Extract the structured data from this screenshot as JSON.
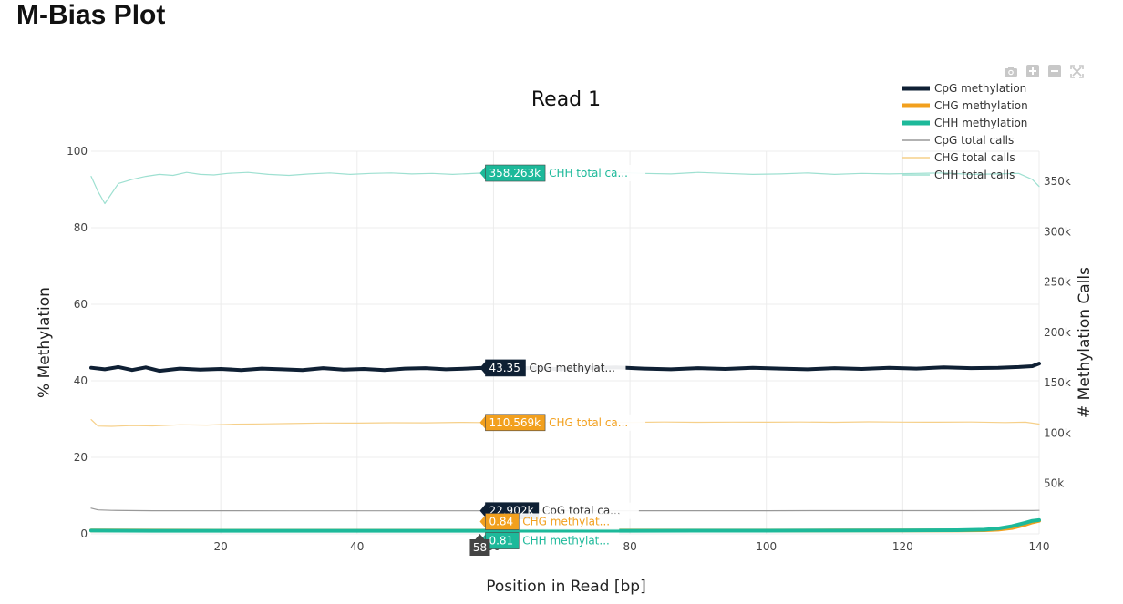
{
  "page": {
    "heading": "M-Bias Plot"
  },
  "modebar": {
    "icons": [
      "camera-icon",
      "zoom-in-icon",
      "zoom-out-icon",
      "autoscale-icon"
    ]
  },
  "chart_data": {
    "type": "line",
    "title": "Read 1",
    "xlabel": "Position in Read [bp]",
    "ylabel": "% Methylation",
    "y2label": "# Methylation Calls",
    "xlim": [
      1,
      140
    ],
    "ylim": [
      0,
      100
    ],
    "y2lim": [
      0,
      380000
    ],
    "xticks": [
      20,
      40,
      60,
      80,
      100,
      120,
      140
    ],
    "yticks": [
      0,
      20,
      40,
      60,
      80,
      100
    ],
    "y2ticks": [
      50000,
      100000,
      150000,
      200000,
      250000,
      300000,
      350000
    ],
    "y2ticklabels": [
      "50k",
      "100k",
      "150k",
      "200k",
      "250k",
      "300k",
      "350k"
    ],
    "grid": true,
    "legend_position": "top-right",
    "hover": {
      "x_label": "58",
      "items": [
        {
          "value": "358.263k",
          "name": "CHH total ca...",
          "color": "#1db99a",
          "text_color": "#1db99a"
        },
        {
          "value": "43.35",
          "name": "CpG methylat...",
          "color": "#0f2034",
          "text_color": "#333333"
        },
        {
          "value": "110.569k",
          "name": "CHG total ca...",
          "color": "#f2a01e",
          "text_color": "#f2a01e"
        },
        {
          "value": "22.902k",
          "name": "CpG total ca...",
          "color": "#0f2034",
          "text_color": "#333333"
        },
        {
          "value": "0.84",
          "name": "CHG methylat...",
          "color": "#f2a01e",
          "text_color": "#f2a01e"
        },
        {
          "value": "0.81",
          "name": "CHH methylat...",
          "color": "#1db99a",
          "text_color": "#1db99a"
        }
      ]
    },
    "series": [
      {
        "name": "CpG methylation",
        "axis": "y",
        "color": "#0f2034",
        "width": 4,
        "x": [
          1,
          3,
          5,
          7,
          9,
          11,
          14,
          17,
          20,
          23,
          26,
          29,
          32,
          35,
          38,
          41,
          44,
          47,
          50,
          53,
          56,
          58,
          62,
          66,
          70,
          74,
          78,
          82,
          86,
          90,
          94,
          98,
          102,
          106,
          110,
          114,
          118,
          122,
          126,
          130,
          134,
          137,
          139,
          140
        ],
        "y": [
          43.4,
          43.0,
          43.6,
          42.8,
          43.5,
          42.6,
          43.2,
          42.9,
          43.1,
          42.8,
          43.2,
          43.0,
          42.8,
          43.3,
          42.9,
          43.1,
          42.8,
          43.2,
          43.3,
          43.0,
          43.2,
          43.35,
          43.1,
          43.4,
          43.0,
          43.3,
          43.5,
          43.2,
          43.0,
          43.3,
          43.1,
          43.4,
          43.2,
          43.0,
          43.3,
          43.1,
          43.4,
          43.2,
          43.5,
          43.3,
          43.4,
          43.6,
          43.8,
          44.5
        ]
      },
      {
        "name": "CHG methylation",
        "axis": "y",
        "color": "#f2a01e",
        "width": 4,
        "x": [
          1,
          10,
          20,
          30,
          40,
          50,
          58,
          70,
          80,
          90,
          100,
          110,
          120,
          128,
          132,
          134,
          136,
          138,
          139,
          140
        ],
        "y": [
          0.9,
          0.85,
          0.84,
          0.84,
          0.83,
          0.84,
          0.84,
          0.85,
          0.85,
          0.86,
          0.86,
          0.87,
          0.88,
          0.9,
          0.95,
          1.1,
          1.5,
          2.4,
          3.0,
          3.4
        ]
      },
      {
        "name": "CHH methylation",
        "axis": "y",
        "color": "#1db99a",
        "width": 4,
        "x": [
          1,
          10,
          20,
          30,
          40,
          50,
          58,
          70,
          80,
          90,
          100,
          110,
          120,
          128,
          132,
          134,
          136,
          138,
          139,
          140
        ],
        "y": [
          0.85,
          0.8,
          0.8,
          0.8,
          0.8,
          0.81,
          0.81,
          0.82,
          0.82,
          0.83,
          0.84,
          0.85,
          0.87,
          0.95,
          1.1,
          1.4,
          2.0,
          2.9,
          3.4,
          3.6
        ]
      },
      {
        "name": "CpG total calls",
        "axis": "y2",
        "color": "#999999",
        "width": 1.2,
        "x": [
          1,
          2,
          4,
          10,
          20,
          30,
          40,
          50,
          58,
          70,
          80,
          90,
          100,
          110,
          120,
          130,
          138,
          139,
          140
        ],
        "y": [
          25500,
          23800,
          23300,
          23000,
          23000,
          22900,
          22900,
          22900,
          22902,
          22950,
          22950,
          23000,
          23000,
          23050,
          23050,
          23100,
          23150,
          23200,
          23300
        ]
      },
      {
        "name": "CHG total calls",
        "axis": "y2",
        "color": "#f6d08a",
        "width": 1.2,
        "x": [
          1,
          2,
          4,
          7,
          10,
          14,
          18,
          22,
          26,
          30,
          35,
          40,
          45,
          50,
          55,
          58,
          62,
          66,
          70,
          75,
          80,
          85,
          90,
          95,
          100,
          105,
          110,
          115,
          120,
          125,
          130,
          135,
          138,
          140
        ],
        "y": [
          113500,
          107000,
          106800,
          107500,
          107200,
          108300,
          108000,
          108900,
          109200,
          109600,
          110100,
          110000,
          110400,
          110300,
          110700,
          110569,
          110800,
          110600,
          110900,
          111000,
          110700,
          111100,
          110800,
          111000,
          110900,
          111100,
          110800,
          111300,
          111000,
          110900,
          111100,
          110600,
          110900,
          109000
        ]
      },
      {
        "name": "CHH total calls",
        "axis": "y2",
        "color": "#9ee0d1",
        "width": 1.2,
        "x": [
          1,
          2,
          3,
          5,
          7,
          9,
          11,
          13,
          15,
          17,
          19,
          21,
          24,
          27,
          30,
          33,
          36,
          39,
          42,
          45,
          48,
          51,
          54,
          58,
          62,
          66,
          70,
          74,
          78,
          82,
          86,
          90,
          94,
          98,
          102,
          106,
          110,
          114,
          118,
          122,
          126,
          130,
          134,
          137,
          139,
          140
        ],
        "y": [
          355000,
          340000,
          328000,
          348000,
          352000,
          355000,
          357000,
          356000,
          359000,
          357000,
          356500,
          358000,
          359000,
          357000,
          356000,
          357500,
          358500,
          357000,
          358000,
          358500,
          357500,
          358000,
          357000,
          358263,
          358000,
          357500,
          358500,
          357000,
          359000,
          358000,
          357500,
          359000,
          358000,
          357000,
          357500,
          358500,
          357000,
          358000,
          357500,
          358000,
          358500,
          357000,
          357500,
          358000,
          352000,
          345000
        ]
      }
    ]
  }
}
